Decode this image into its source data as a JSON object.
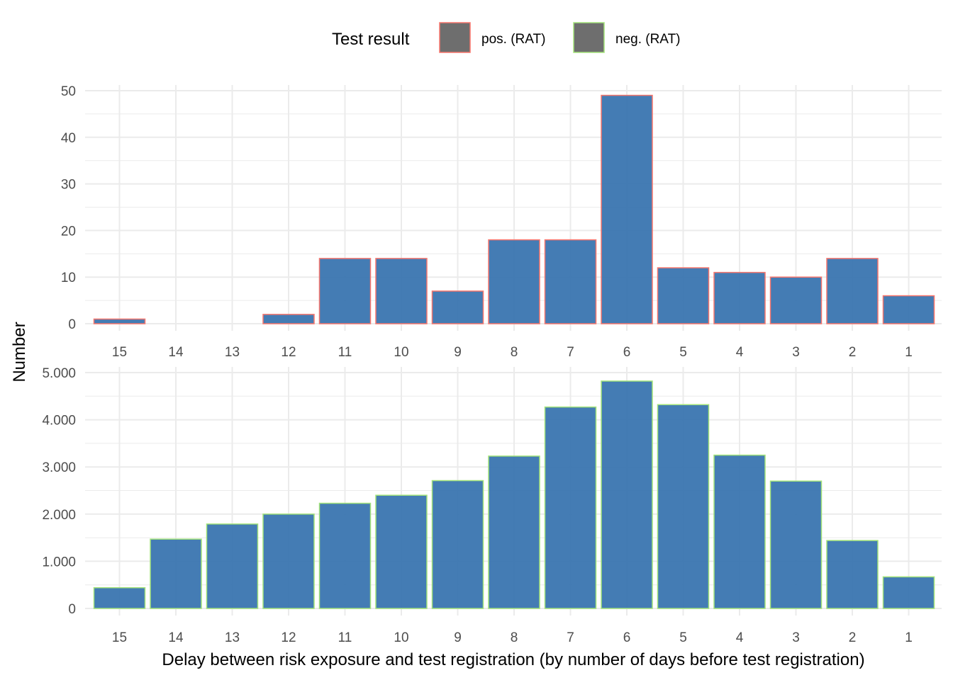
{
  "legend": {
    "title": "Test result",
    "items": [
      {
        "label": "pos. (RAT)",
        "outline": "#F8766D"
      },
      {
        "label": "neg. (RAT)",
        "outline": "#A3E37A"
      }
    ],
    "key_fill": "#6E6E6E",
    "position": "top"
  },
  "ylabel": "Number",
  "xlabel": "Delay between risk exposure and test registration (by number of days before test registration)",
  "colors": {
    "bar_fill": "#3A75B0",
    "grid": "#EBEBEB",
    "pos_outline": "#F8766D",
    "neg_outline": "#A3E37A"
  },
  "chart_data": [
    {
      "type": "bar",
      "panel": "pos. (RAT)",
      "categories": [
        "15",
        "14",
        "13",
        "12",
        "11",
        "10",
        "9",
        "8",
        "7",
        "6",
        "5",
        "4",
        "3",
        "2",
        "1"
      ],
      "values": [
        1,
        0,
        0,
        2,
        14,
        14,
        7,
        18,
        18,
        49,
        12,
        11,
        10,
        14,
        6
      ],
      "ylim": [
        0,
        50
      ],
      "yticks": [
        0,
        10,
        20,
        30,
        40,
        50
      ],
      "ytick_labels": [
        "0",
        "10",
        "20",
        "30",
        "40",
        "50"
      ],
      "grid": true
    },
    {
      "type": "bar",
      "panel": "neg. (RAT)",
      "categories": [
        "15",
        "14",
        "13",
        "12",
        "11",
        "10",
        "9",
        "8",
        "7",
        "6",
        "5",
        "4",
        "3",
        "2",
        "1"
      ],
      "values": [
        440,
        1470,
        1790,
        2000,
        2230,
        2400,
        2710,
        3230,
        4270,
        4820,
        4320,
        3250,
        2700,
        1440,
        670
      ],
      "ylim": [
        0,
        5000
      ],
      "yticks": [
        0,
        1000,
        2000,
        3000,
        4000,
        5000
      ],
      "ytick_labels": [
        "0",
        "1.000",
        "2.000",
        "3.000",
        "4.000",
        "5.000"
      ],
      "grid": true
    }
  ]
}
